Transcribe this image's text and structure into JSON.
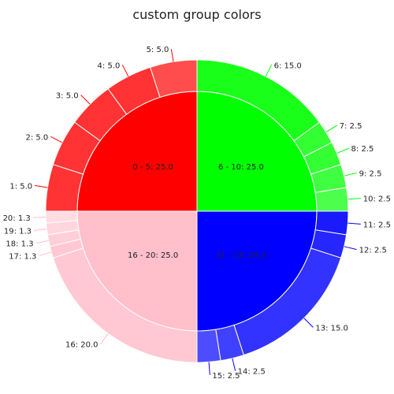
{
  "chart_data": {
    "type": "pie",
    "subtype": "sunburst-two-level",
    "title": "custom group colors",
    "groups": [
      {
        "label": "0 - 5: 25.0",
        "name": "0 - 5",
        "value": 25.0,
        "color": "#ff0000"
      },
      {
        "label": "6 - 10: 25.0",
        "name": "6 - 10",
        "value": 25.0,
        "color": "#00ff00"
      },
      {
        "label": "11 - 15: 25.0",
        "name": "11 - 15",
        "value": 25.0,
        "color": "#0000ff"
      },
      {
        "label": "16 - 20: 25.0",
        "name": "16 - 20",
        "value": 25.0,
        "color": "#ffc0cb"
      }
    ],
    "slices": [
      {
        "label": "1: 5.0",
        "name": "1",
        "group": 0,
        "value": 5.0,
        "color": "#ff3333"
      },
      {
        "label": "2: 5.0",
        "name": "2",
        "group": 0,
        "value": 5.0,
        "color": "#ff3333"
      },
      {
        "label": "3: 5.0",
        "name": "3",
        "group": 0,
        "value": 5.0,
        "color": "#ff3333"
      },
      {
        "label": "4: 5.0",
        "name": "4",
        "group": 0,
        "value": 5.0,
        "color": "#ff3333"
      },
      {
        "label": "5: 5.0",
        "name": "5",
        "group": 0,
        "value": 5.0,
        "color": "#ff4d4d"
      },
      {
        "label": "6: 15.0",
        "name": "6",
        "group": 1,
        "value": 15.0,
        "color": "#1aff1a"
      },
      {
        "label": "7: 2.5",
        "name": "7",
        "group": 1,
        "value": 2.5,
        "color": "#33ff33"
      },
      {
        "label": "8: 2.5",
        "name": "8",
        "group": 1,
        "value": 2.5,
        "color": "#33ff33"
      },
      {
        "label": "9: 2.5",
        "name": "9",
        "group": 1,
        "value": 2.5,
        "color": "#40ff40"
      },
      {
        "label": "10: 2.5",
        "name": "10",
        "group": 1,
        "value": 2.5,
        "color": "#4dff4d"
      },
      {
        "label": "11: 2.5",
        "name": "11",
        "group": 2,
        "value": 2.5,
        "color": "#1a1aff"
      },
      {
        "label": "12: 2.5",
        "name": "12",
        "group": 2,
        "value": 2.5,
        "color": "#2626ff"
      },
      {
        "label": "13: 15.0",
        "name": "13",
        "group": 2,
        "value": 15.0,
        "color": "#3333ff"
      },
      {
        "label": "14: 2.5",
        "name": "14",
        "group": 2,
        "value": 2.5,
        "color": "#4040ff"
      },
      {
        "label": "15: 2.5",
        "name": "15",
        "group": 2,
        "value": 2.5,
        "color": "#4d4dff"
      },
      {
        "label": "16: 20.0",
        "name": "16",
        "group": 3,
        "value": 20.0,
        "color": "#ffc8d2"
      },
      {
        "label": "17: 1.3",
        "name": "17",
        "group": 3,
        "value": 1.25,
        "color": "#ffc8d2"
      },
      {
        "label": "18: 1.3",
        "name": "18",
        "group": 3,
        "value": 1.25,
        "color": "#ffcfd8"
      },
      {
        "label": "19: 1.3",
        "name": "19",
        "group": 3,
        "value": 1.25,
        "color": "#ffd6dd"
      },
      {
        "label": "20: 1.3",
        "name": "20",
        "group": 3,
        "value": 1.25,
        "color": "#ffdde3"
      }
    ],
    "outer_order": [
      "6",
      "7",
      "8",
      "9",
      "10",
      "11",
      "12",
      "13",
      "14",
      "15",
      "16",
      "17",
      "18",
      "19",
      "20",
      "1",
      "2",
      "3",
      "4",
      "5"
    ],
    "inner_order": [
      "6 - 10",
      "11 - 15",
      "16 - 20",
      "0 - 5"
    ],
    "start_angle": "12 o'clock",
    "direction": "clockwise",
    "legend": "none",
    "grid": false
  }
}
